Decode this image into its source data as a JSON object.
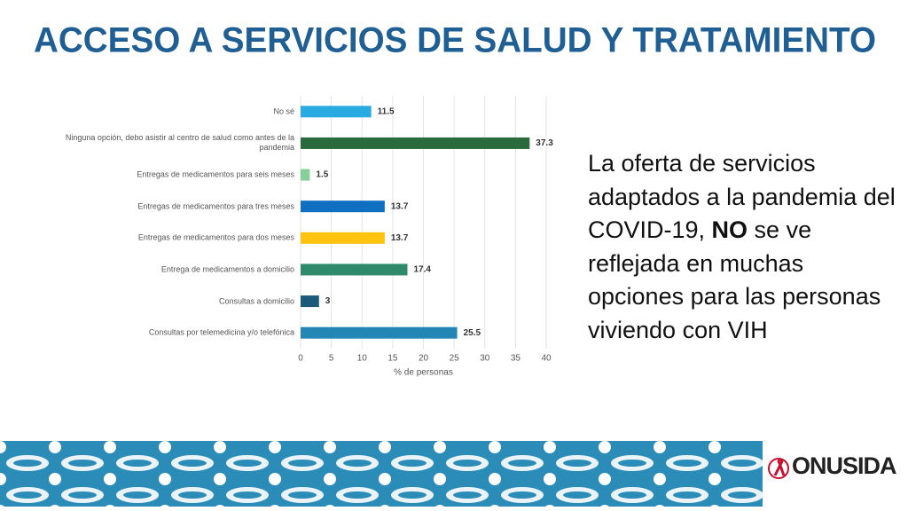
{
  "slide": {
    "title": "ACCESO A SERVICIOS DE SALUD Y TRATAMIENTO",
    "text": [
      "La oferta de servicios adaptados a la pandemia del COVID-19, ",
      "NO",
      " se ve reflejada en muchas opciones para las personas viviendo con VIH"
    ],
    "logo": "ONUSIDA"
  },
  "chart_data": {
    "type": "hbar",
    "categories": [
      "No sé",
      "Ninguna opción, debo asistir al centro de salud como antes de la pandemia",
      "Entregas de medicamentos para seis meses",
      "Entregas de medicamentos para tres meses",
      "Entregas de medicamentos para dos meses",
      "Entrega de medicamentos a domicilio",
      "Consultas a domicilio",
      "Consultas por telemedicina y/o telefónica"
    ],
    "values": [
      11.5,
      37.3,
      1.5,
      13.7,
      13.7,
      17.4,
      3,
      25.5
    ],
    "colors": [
      "#29abe2",
      "#2b6a3c",
      "#86cf98",
      "#0f6fc0",
      "#ffc20e",
      "#2f8a6c",
      "#1a5a78",
      "#2486b5"
    ],
    "xlabel": "% de personas",
    "xlim": [
      0,
      40
    ],
    "xticks": [
      0,
      5,
      10,
      15,
      20,
      25,
      30,
      35,
      40
    ],
    "grid": true
  }
}
